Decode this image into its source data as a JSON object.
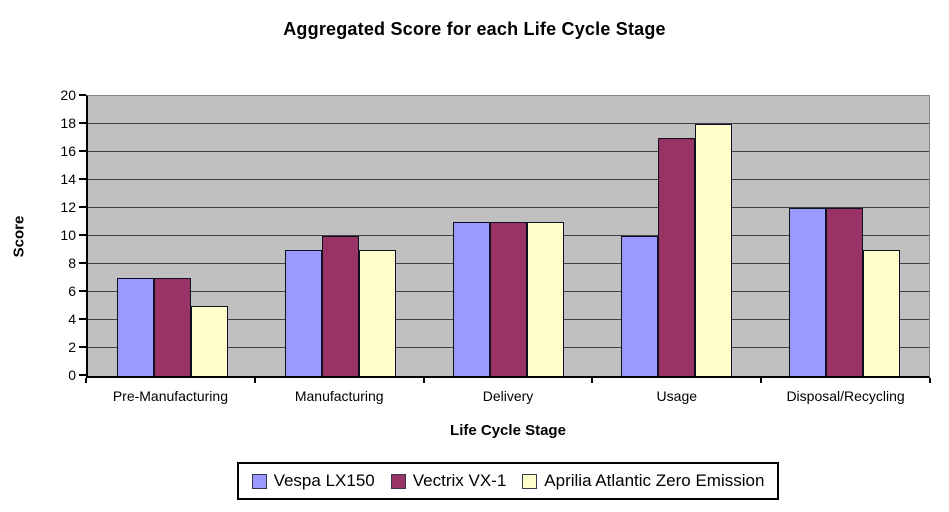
{
  "chart_data": {
    "type": "bar",
    "title": "Aggregated Score for each Life Cycle Stage",
    "xlabel": "Life Cycle Stage",
    "ylabel": "Score",
    "categories": [
      "Pre-Manufacturing",
      "Manufacturing",
      "Delivery",
      "Usage",
      "Disposal/Recycling"
    ],
    "series": [
      {
        "name": "Vespa LX150",
        "color": "#9999FF",
        "values": [
          7,
          9,
          11,
          10,
          12
        ]
      },
      {
        "name": "Vectrix VX-1",
        "color": "#993366",
        "values": [
          7,
          10,
          11,
          17,
          12
        ]
      },
      {
        "name": "Aprilia Atlantic Zero Emission",
        "color": "#FFFFCC",
        "values": [
          5,
          9,
          11,
          18,
          9
        ]
      }
    ],
    "ylim": [
      0,
      20
    ],
    "ytick_step": 2,
    "yticks": [
      "0",
      "2",
      "4",
      "6",
      "8",
      "10",
      "12",
      "14",
      "16",
      "18",
      "20"
    ],
    "grid": true,
    "legend_position": "bottom",
    "colors": {
      "plot_background": "#C0C0C0",
      "gridline": "#404040",
      "axis": "#000000",
      "plot_border": "#848484",
      "bar_border": "#101020"
    }
  }
}
